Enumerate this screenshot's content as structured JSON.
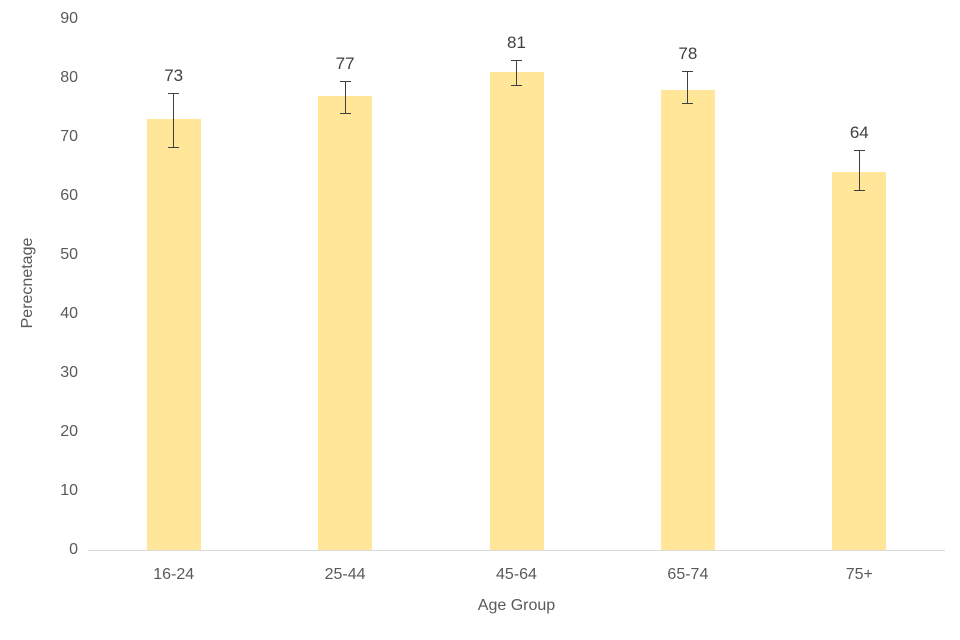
{
  "chart_data": {
    "type": "bar",
    "title": "",
    "xlabel": "Age Group",
    "ylabel": "Perecnetage",
    "categories": [
      "16-24",
      "25-44",
      "45-64",
      "65-74",
      "75+"
    ],
    "values": [
      73,
      77,
      81,
      78,
      64
    ],
    "data_labels": [
      "73",
      "77",
      "81",
      "78",
      "64"
    ],
    "error_bars": [
      {
        "low": 68.3,
        "high": 77.5
      },
      {
        "low": 74.0,
        "high": 79.5
      },
      {
        "low": 78.8,
        "high": 83.0
      },
      {
        "low": 75.8,
        "high": 81.2
      },
      {
        "low": 61.0,
        "high": 67.8
      }
    ],
    "ylim": [
      0,
      90
    ],
    "ytick_step": 10,
    "yticks": [
      "0",
      "10",
      "20",
      "30",
      "40",
      "50",
      "60",
      "70",
      "80",
      "90"
    ],
    "grid": false,
    "legend": null,
    "colors": {
      "bar_fill": "#FFE699",
      "axis_text": "#595959",
      "data_label_text": "#404040",
      "axis_line": "#D9D9D9",
      "error_bar": "#404040",
      "background": "#FFFFFF"
    }
  }
}
